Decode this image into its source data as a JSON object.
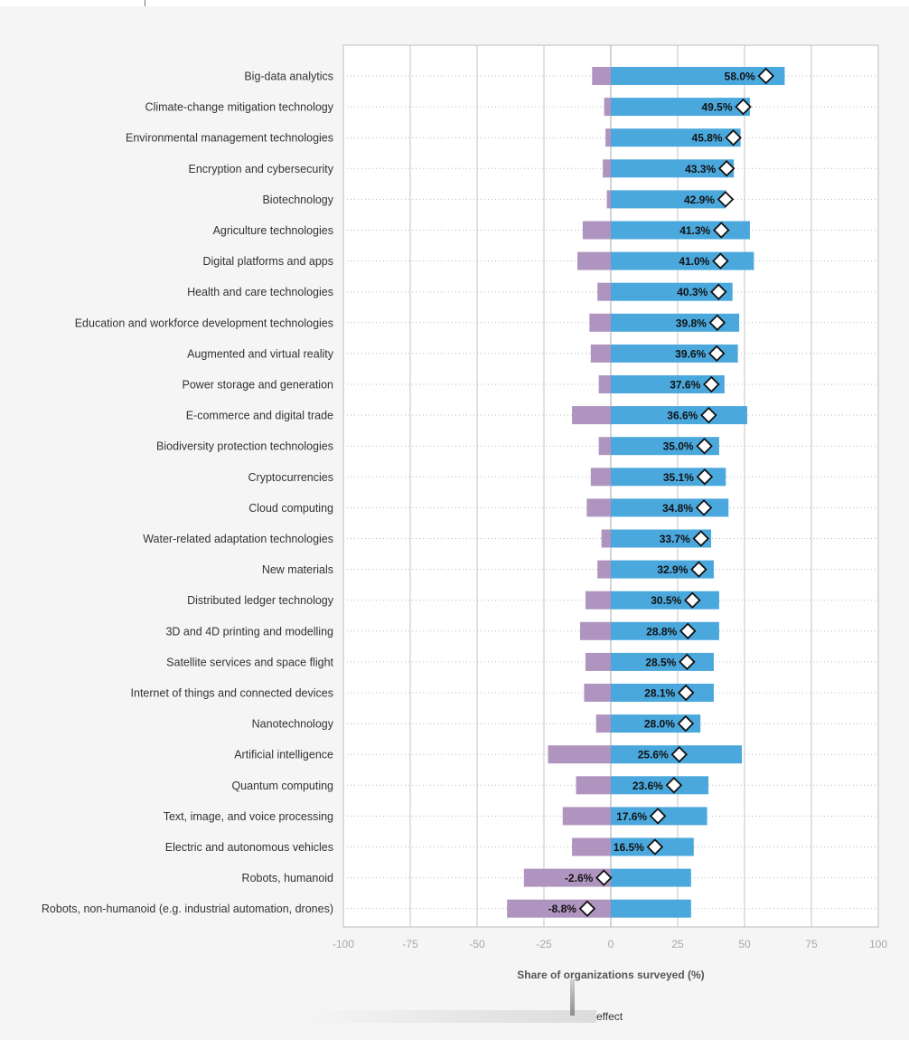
{
  "chart_data": {
    "type": "bar",
    "xlabel": "Share of organizations surveyed (%)",
    "xlim": [
      -100,
      100
    ],
    "x_ticks": [
      "-100",
      "-75",
      "-50",
      "-25",
      "0",
      "25",
      "50",
      "75",
      "100"
    ],
    "grid": true,
    "colors": {
      "positive": "#4aa8dd",
      "negative": "#b094c0",
      "marker_fill": "#ffffff",
      "marker_stroke": "#111111"
    },
    "categories": [
      "Big-data analytics",
      "Climate-change mitigation technology",
      "Environmental management technologies",
      "Encryption and cybersecurity",
      "Biotechnology",
      "Agriculture technologies",
      "Digital platforms and apps",
      "Health and care technologies",
      "Education and workforce development technologies",
      "Augmented and virtual reality",
      "Power storage and generation",
      "E-commerce and digital trade",
      "Biodiversity protection technologies",
      "Cryptocurrencies",
      "Cloud computing",
      "Water-related adaptation technologies",
      "New materials",
      "Distributed ledger technology",
      "3D and 4D printing and modelling",
      "Satellite services and space flight",
      "Internet of things and connected devices",
      "Nanotechnology",
      "Artificial intelligence",
      "Quantum computing",
      "Text, image, and voice processing",
      "Electric and autonomous vehicles",
      "Robots, humanoid",
      "Robots, non-humanoid (e.g. industrial automation, drones)"
    ],
    "series": [
      {
        "values": [
          65,
          52,
          48.5,
          46,
          43,
          52,
          53.5,
          45.5,
          48,
          47.5,
          42.5,
          51,
          40.5,
          43,
          44,
          37.5,
          38.5,
          40.5,
          40.5,
          38.5,
          38.5,
          33.5,
          49,
          36.5,
          36,
          31,
          30,
          30
        ]
      },
      {
        "values": [
          -7,
          -2.5,
          -2,
          -3,
          -1.5,
          -10.5,
          -12.5,
          -5,
          -8,
          -7.5,
          -4.5,
          -14.5,
          -4.5,
          -7.5,
          -9,
          -3.5,
          -5,
          -9.5,
          -11.5,
          -9.5,
          -10,
          -5.5,
          -23.5,
          -13,
          -18,
          -14.5,
          -32.5,
          -38.8
        ]
      },
      {
        "values": [
          58.0,
          49.5,
          45.8,
          43.3,
          42.9,
          41.3,
          41.0,
          40.3,
          39.8,
          39.6,
          37.6,
          36.6,
          35.0,
          35.1,
          34.8,
          33.7,
          32.9,
          30.5,
          28.8,
          28.5,
          28.1,
          28.0,
          25.6,
          23.6,
          17.6,
          16.5,
          -2.6,
          -8.8
        ],
        "labels": [
          "58.0%",
          "49.5%",
          "45.8%",
          "43.3%",
          "42.9%",
          "41.3%",
          "41.0%",
          "40.3%",
          "39.8%",
          "39.6%",
          "37.6%",
          "36.6%",
          "35.0%",
          "35.1%",
          "34.8%",
          "33.7%",
          "32.9%",
          "30.5%",
          "28.8%",
          "28.5%",
          "28.1%",
          "28.0%",
          "25.6%",
          "23.6%",
          "17.6%",
          "16.5%",
          "-2.6%",
          "-8.8%"
        ]
      }
    ]
  },
  "legend": {
    "partial_text": "effect"
  }
}
